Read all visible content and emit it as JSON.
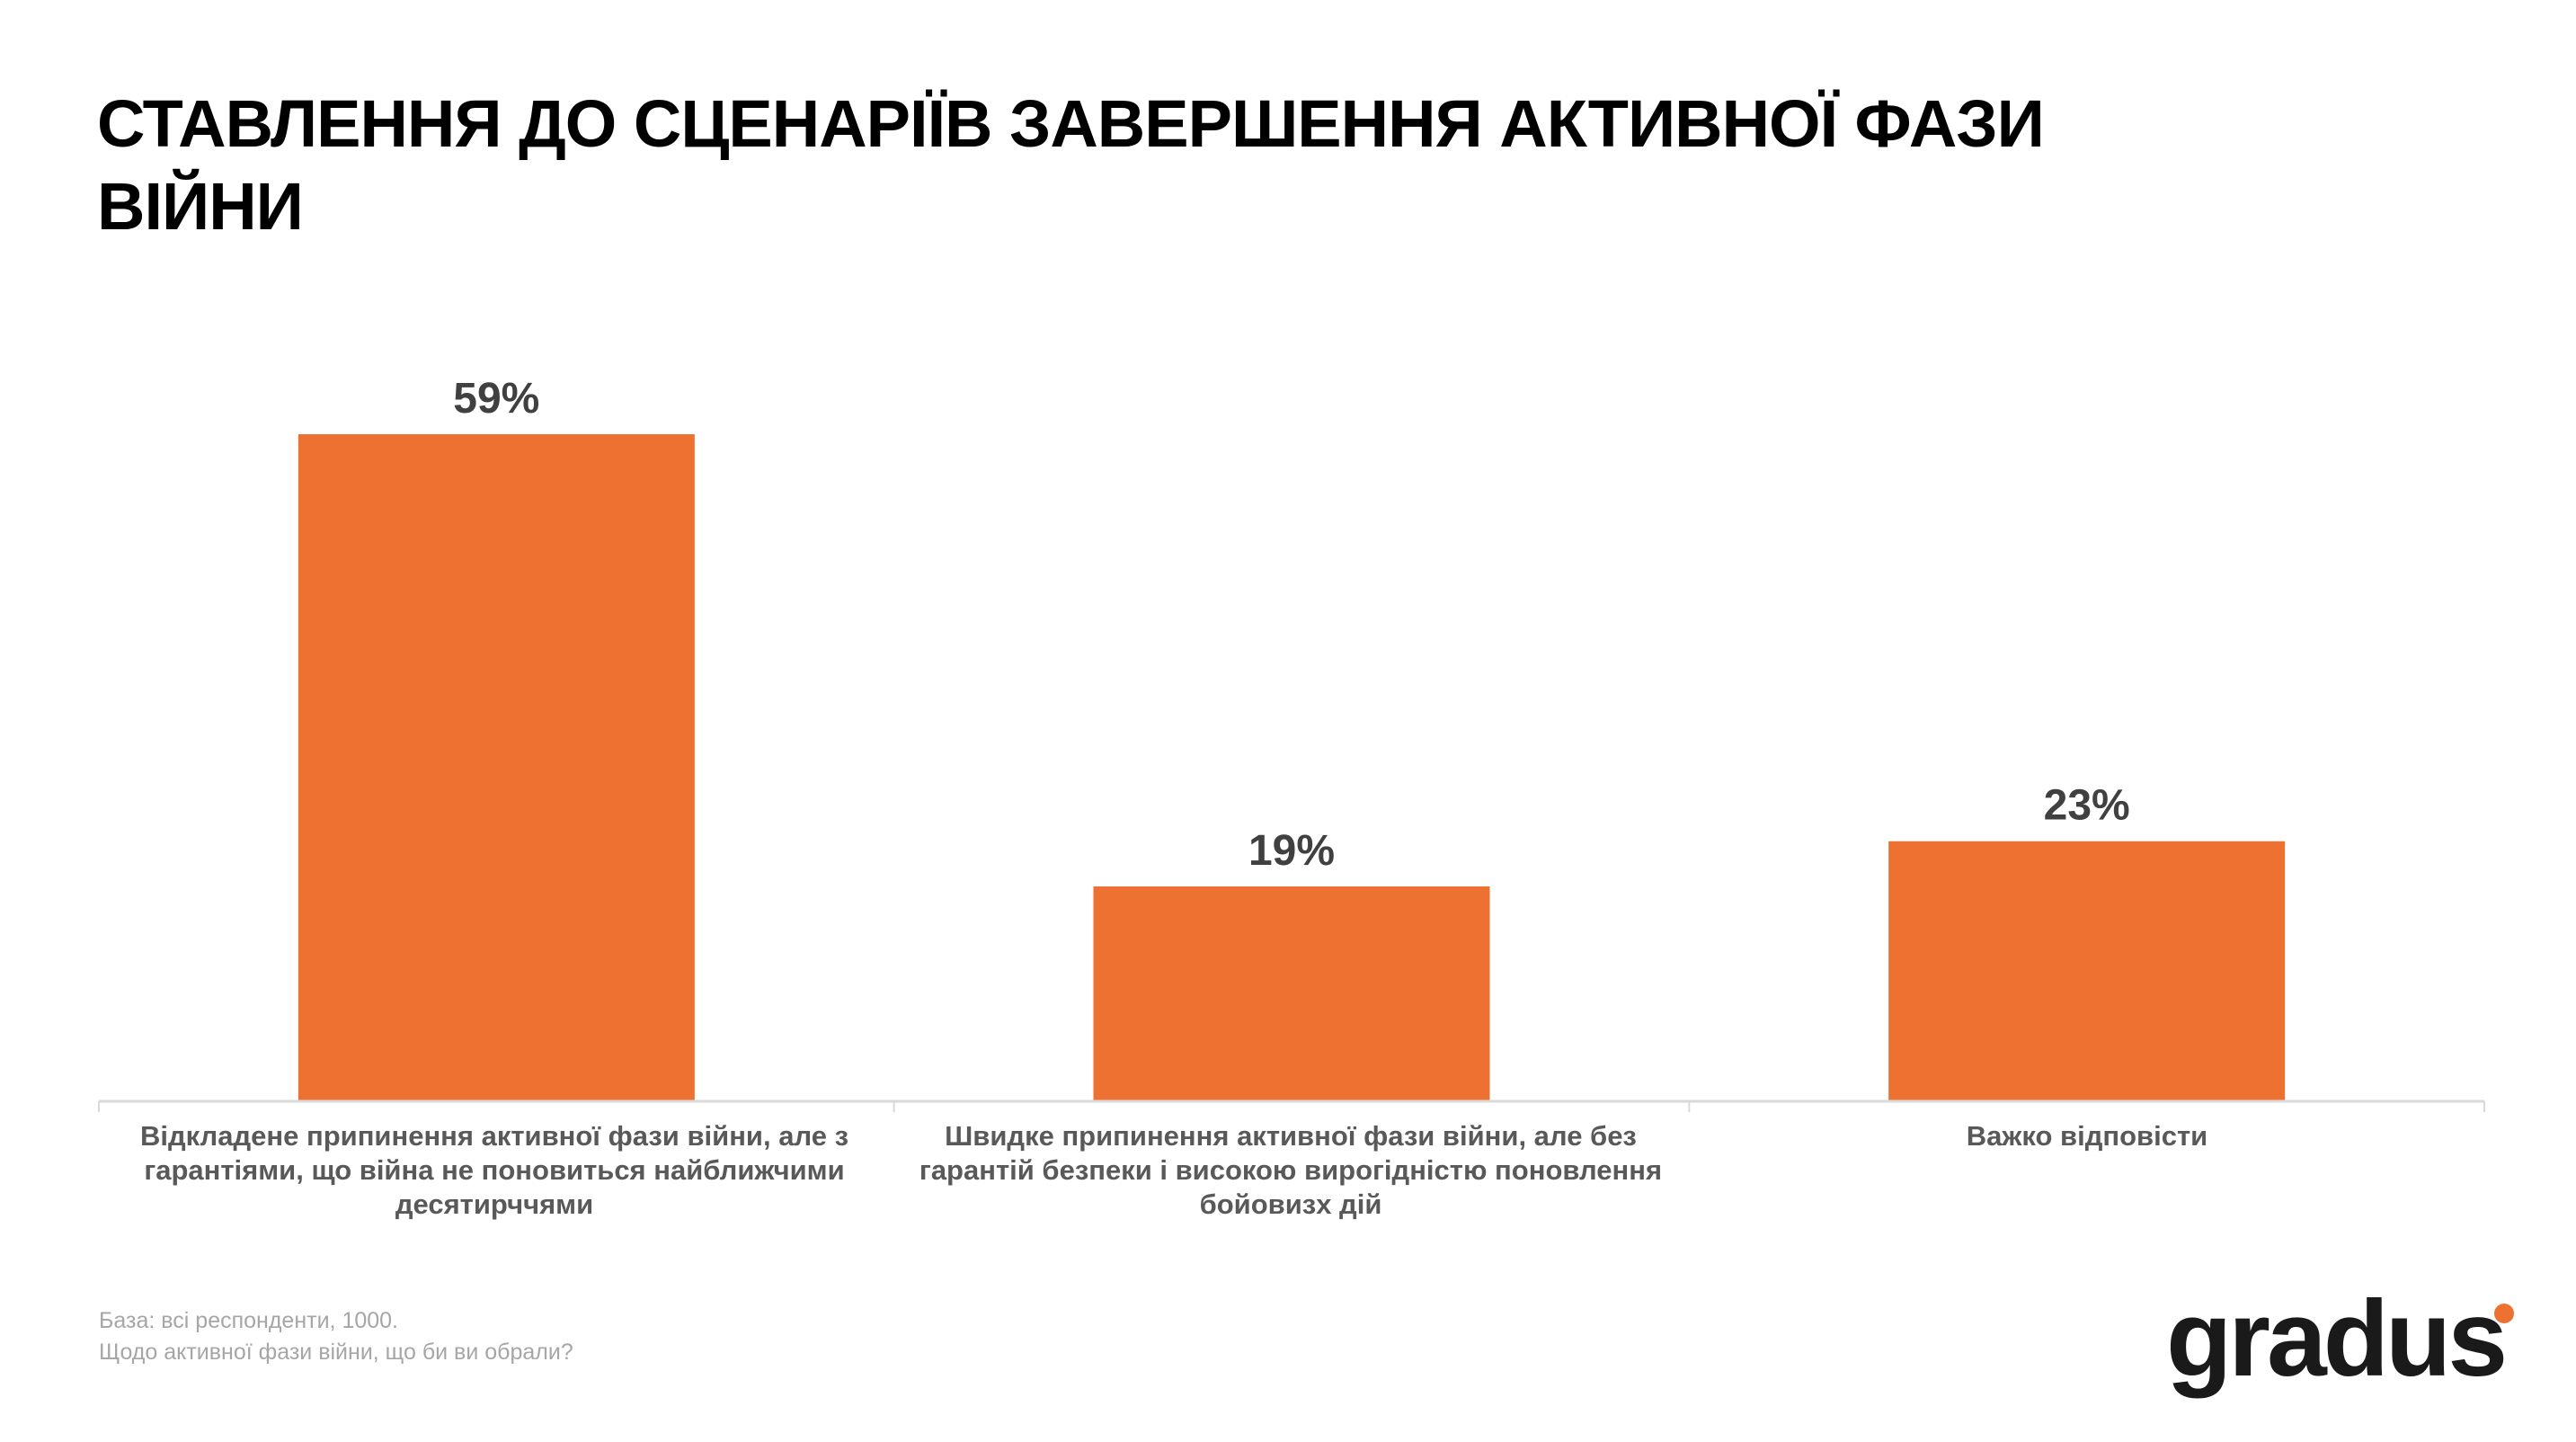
{
  "title": "СТАВЛЕННЯ ДО СЦЕНАРІЇВ ЗАВЕРШЕННЯ АКТИВНОЇ ФАЗИ ВІЙНИ",
  "chart_data": {
    "type": "bar",
    "categories": [
      "Відкладене припинення активної фази війни, але з гарантіями, що війна не поновиться найближчими десятирччями",
      "Швидке припинення активної фази війни, але без гарантій безпеки і високою вирогідністю поновлення бойовизх дій",
      "Важко відповісти"
    ],
    "values": [
      59,
      19,
      23
    ],
    "data_labels": [
      "59%",
      "19%",
      "23%"
    ],
    "ylim": [
      0,
      70
    ],
    "grid": false,
    "bar_color": "#ed7131"
  },
  "footer": {
    "base": "База: всі респонденти, 1000.",
    "question": "Щодо активної фази війни, що би ви обрали?"
  },
  "logo": {
    "text": "gradus",
    "accent_color": "#ed7131"
  }
}
